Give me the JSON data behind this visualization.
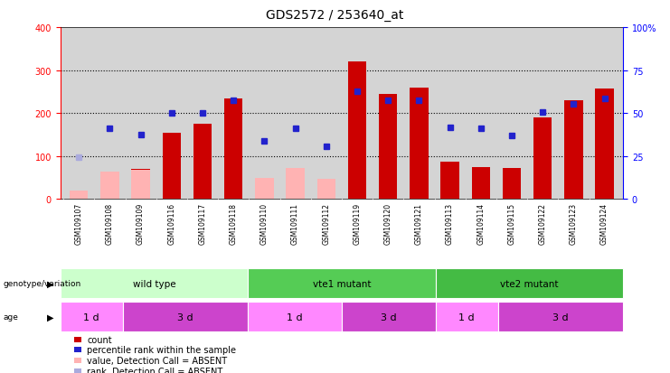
{
  "title": "GDS2572 / 253640_at",
  "samples": [
    "GSM109107",
    "GSM109108",
    "GSM109109",
    "GSM109116",
    "GSM109117",
    "GSM109118",
    "GSM109110",
    "GSM109111",
    "GSM109112",
    "GSM109119",
    "GSM109120",
    "GSM109121",
    "GSM109113",
    "GSM109114",
    "GSM109115",
    "GSM109122",
    "GSM109123",
    "GSM109124"
  ],
  "count": [
    null,
    null,
    70,
    155,
    175,
    235,
    null,
    null,
    null,
    320,
    245,
    260,
    88,
    75,
    72,
    190,
    230,
    258
  ],
  "count_absent": [
    20,
    65,
    68,
    null,
    null,
    null,
    50,
    72,
    47,
    null,
    null,
    null,
    null,
    null,
    null,
    null,
    null,
    null
  ],
  "rank_present": [
    null,
    165,
    150,
    200,
    200,
    230,
    135,
    165,
    123,
    252,
    230,
    230,
    168,
    165,
    148,
    202,
    222,
    235
  ],
  "rank_absent": [
    98,
    null,
    null,
    null,
    null,
    null,
    null,
    null,
    null,
    null,
    null,
    null,
    null,
    null,
    null,
    null,
    null,
    null
  ],
  "ylim_left": [
    0,
    400
  ],
  "ylim_right": [
    0,
    100
  ],
  "yticks_left": [
    0,
    100,
    200,
    300,
    400
  ],
  "yticks_right": [
    0,
    25,
    50,
    75,
    100
  ],
  "ytick_labels_right": [
    "0",
    "25",
    "50",
    "75",
    "100%"
  ],
  "bar_color": "#cc0000",
  "bar_absent_color": "#ffb3b3",
  "rank_present_color": "#2222cc",
  "rank_absent_color": "#aaaadd",
  "geno_ranges": [
    {
      "label": "wild type",
      "start": 0,
      "end": 5,
      "color": "#ccffcc"
    },
    {
      "label": "vte1 mutant",
      "start": 6,
      "end": 11,
      "color": "#55cc55"
    },
    {
      "label": "vte2 mutant",
      "start": 12,
      "end": 17,
      "color": "#44bb44"
    }
  ],
  "age_ranges": [
    {
      "label": "1 d",
      "start": 0,
      "end": 1,
      "color": "#ff88ff"
    },
    {
      "label": "3 d",
      "start": 2,
      "end": 5,
      "color": "#cc44cc"
    },
    {
      "label": "1 d",
      "start": 6,
      "end": 8,
      "color": "#ff88ff"
    },
    {
      "label": "3 d",
      "start": 9,
      "end": 11,
      "color": "#cc44cc"
    },
    {
      "label": "1 d",
      "start": 12,
      "end": 13,
      "color": "#ff88ff"
    },
    {
      "label": "3 d",
      "start": 14,
      "end": 17,
      "color": "#cc44cc"
    }
  ],
  "bg_color": "#d4d4d4",
  "legend": [
    {
      "color": "#cc0000",
      "label": "count"
    },
    {
      "color": "#2222cc",
      "label": "percentile rank within the sample"
    },
    {
      "color": "#ffb3b3",
      "label": "value, Detection Call = ABSENT"
    },
    {
      "color": "#aaaadd",
      "label": "rank, Detection Call = ABSENT"
    }
  ]
}
